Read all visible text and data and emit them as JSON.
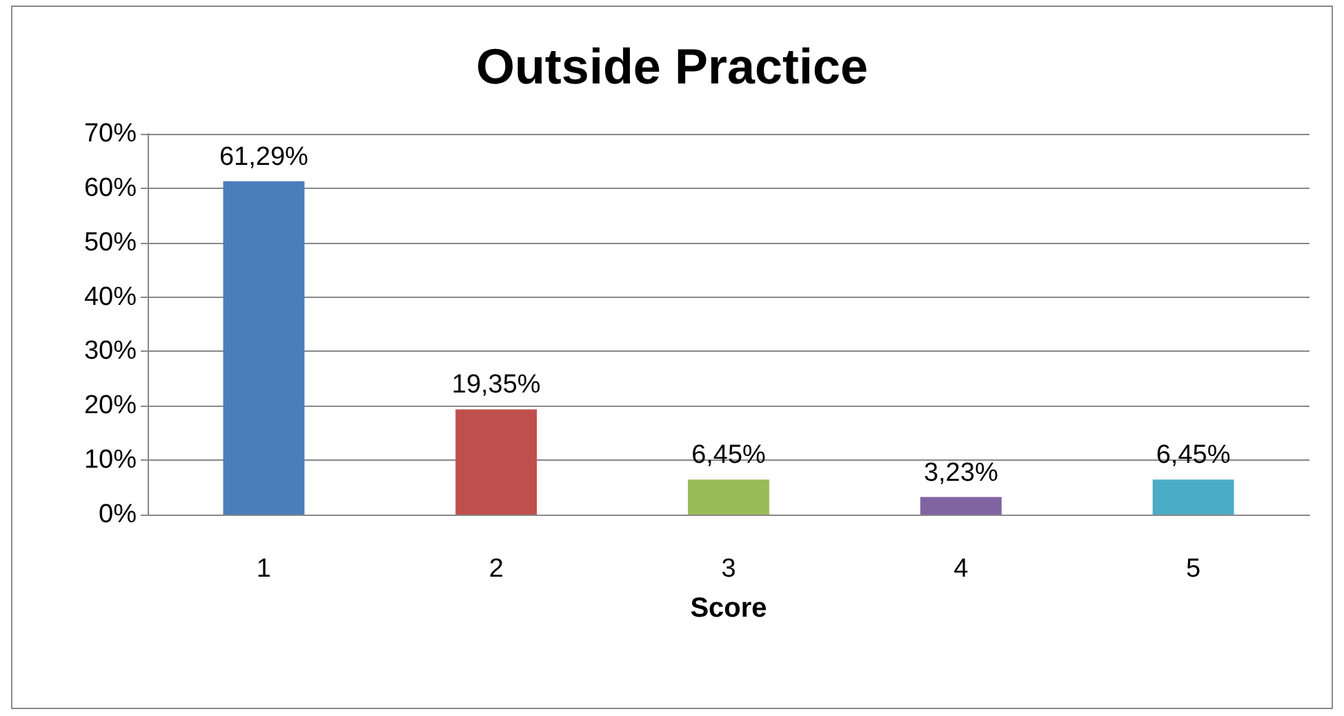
{
  "chart_data": {
    "type": "bar",
    "title": "Outside Practice",
    "xlabel": "Score",
    "categories": [
      "1",
      "2",
      "3",
      "4",
      "5"
    ],
    "values": [
      61.29,
      19.35,
      6.45,
      3.23,
      6.45
    ],
    "colors": [
      "#4a7ebb",
      "#c0504d",
      "#9bbb59",
      "#8064a2",
      "#4bacc6"
    ],
    "value_labels": [
      "61,29%",
      "19,35%",
      "6,45%",
      "3,23%",
      "6,45%"
    ],
    "ylim": [
      0,
      70
    ],
    "yticks": [
      {
        "value": 0,
        "label": "0%"
      },
      {
        "value": 10,
        "label": "10%"
      },
      {
        "value": 20,
        "label": "20%"
      },
      {
        "value": 30,
        "label": "30%"
      },
      {
        "value": 40,
        "label": "40%"
      },
      {
        "value": 50,
        "label": "50%"
      },
      {
        "value": 60,
        "label": "60%"
      },
      {
        "value": 70,
        "label": "70%"
      }
    ],
    "grid": "y"
  }
}
